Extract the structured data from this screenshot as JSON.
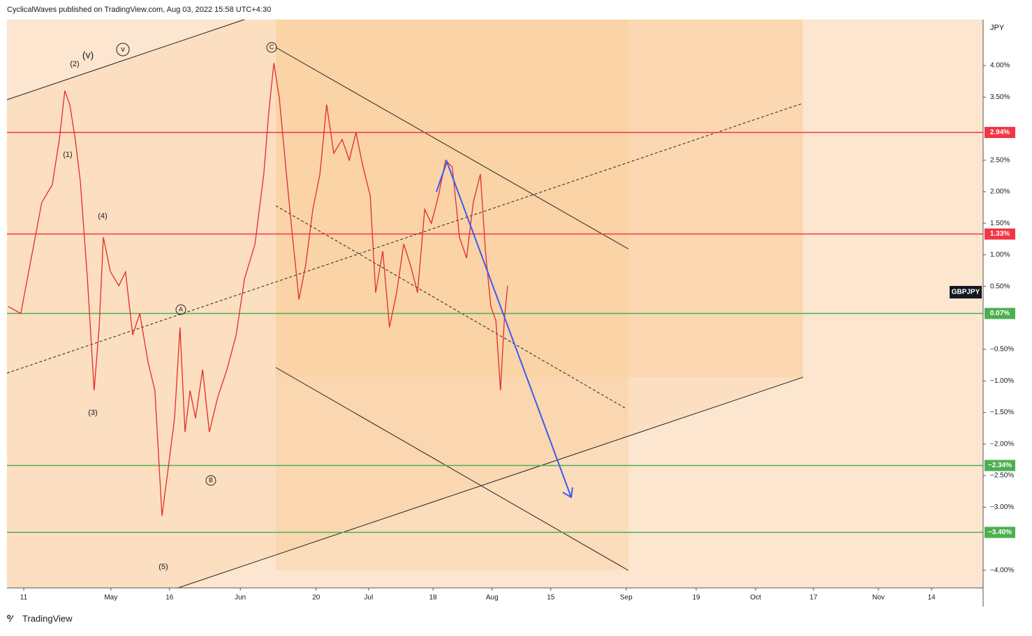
{
  "header": {
    "text": "CyclicalWaves published on TradingView.com, Aug 03, 2022 15:58 UTC+4:30"
  },
  "footer": {
    "brand": "TradingView"
  },
  "chart_data": {
    "type": "line",
    "symbol": "GBPJPY",
    "y_axis_label": "JPY",
    "color": "#e32b2b",
    "x": [
      -3.7,
      -0.7,
      1.8,
      4.3,
      6.8,
      8.5,
      9.8,
      11,
      12.3,
      13.5,
      15.2,
      16.8,
      18,
      19,
      20.7,
      22.7,
      24.3,
      26,
      27.7,
      29.7,
      31.3,
      33,
      34.3,
      36,
      37.3,
      38.5,
      39.7,
      41,
      42.7,
      44.3,
      46.3,
      48.5,
      50.7,
      52.7,
      55.2,
      57.3,
      58.5,
      59.7,
      61,
      62.7,
      64,
      65.7,
      67.3,
      69,
      70.7,
      72.3,
      74,
      76,
      77.7,
      79.3,
      81,
      82.7,
      84,
      85.7,
      87.3,
      89,
      90.7,
      92.3,
      94,
      95.7,
      97.3,
      99,
      100.7,
      102.3,
      104,
      105.7,
      107.3,
      109,
      110.2,
      111.5,
      112.7,
      113.8,
      114.7,
      115.5
    ],
    "values": [
      0.18,
      0.07,
      0.95,
      1.83,
      2.11,
      2.83,
      3.6,
      3.38,
      2.83,
      2.17,
      0.62,
      -1.15,
      -0.15,
      1.28,
      0.73,
      0.51,
      0.73,
      -0.27,
      0.07,
      -0.71,
      -1.15,
      -3.14,
      -2.48,
      -1.59,
      -0.15,
      -1.81,
      -1.15,
      -1.59,
      -0.82,
      -1.81,
      -1.26,
      -0.82,
      -0.27,
      0.62,
      1.17,
      2.28,
      3.27,
      4.04,
      3.49,
      2.28,
      1.39,
      0.29,
      0.84,
      1.72,
      2.28,
      3.38,
      2.61,
      2.83,
      2.5,
      2.94,
      2.39,
      1.94,
      0.4,
      1.06,
      -0.15,
      0.4,
      1.17,
      0.84,
      0.4,
      1.72,
      1.5,
      1.94,
      2.5,
      2.39,
      1.28,
      0.95,
      1.83,
      2.28,
      1.06,
      0.18,
      -0.04,
      -1.15,
      -0.04,
      0.51
    ],
    "xlim": [
      -4,
      229
    ],
    "ylim": [
      -4.28,
      4.73
    ],
    "xticks": [
      {
        "value": 0,
        "label": "11"
      },
      {
        "value": 20.8,
        "label": "May"
      },
      {
        "value": 34.8,
        "label": "16"
      },
      {
        "value": 51.7,
        "label": "Jun"
      },
      {
        "value": 69.8,
        "label": "20"
      },
      {
        "value": 82.3,
        "label": "Jul"
      },
      {
        "value": 97.7,
        "label": "18"
      },
      {
        "value": 111.8,
        "label": "Aug"
      },
      {
        "value": 125.8,
        "label": "15"
      },
      {
        "value": 143.8,
        "label": "Sep"
      },
      {
        "value": 160.5,
        "label": "19"
      },
      {
        "value": 174.7,
        "label": "Oct"
      },
      {
        "value": 188.5,
        "label": "17"
      },
      {
        "value": 204,
        "label": "Nov"
      },
      {
        "value": 216.7,
        "label": "14"
      }
    ],
    "yticks": [
      {
        "value": 4,
        "label": "4.00%"
      },
      {
        "value": 3.5,
        "label": "3.50%"
      },
      {
        "value": 2.5,
        "label": "2.50%"
      },
      {
        "value": 2,
        "label": "2.00%"
      },
      {
        "value": 1.5,
        "label": "1.50%"
      },
      {
        "value": 1,
        "label": "1.00%"
      },
      {
        "value": 0.5,
        "label": "0.50%"
      },
      {
        "value": -0.5,
        "label": "−0.50%"
      },
      {
        "value": -1,
        "label": "−1.00%"
      },
      {
        "value": -1.5,
        "label": "−1.50%"
      },
      {
        "value": -2,
        "label": "−2.00%"
      },
      {
        "value": -2.5,
        "label": "−2.50%"
      },
      {
        "value": -3,
        "label": "−3.00%"
      },
      {
        "value": -4,
        "label": "−4.00%"
      }
    ],
    "grid": false,
    "levels": [
      {
        "value": 2.94,
        "label": "2.94%",
        "color": "#f23645"
      },
      {
        "value": 1.33,
        "label": "1.33%",
        "color": "#f23645"
      },
      {
        "value": 0.07,
        "label": "0.07%",
        "color": "#4caf50"
      },
      {
        "value": -2.34,
        "label": "−2.34%",
        "color": "#4caf50"
      },
      {
        "value": -3.4,
        "label": "−3.40%",
        "color": "#4caf50"
      }
    ],
    "annotations": [
      "(1)",
      "(2)",
      "(3)",
      "(4)",
      "(5)",
      "(v)",
      "v",
      "A",
      "B",
      "C"
    ]
  }
}
